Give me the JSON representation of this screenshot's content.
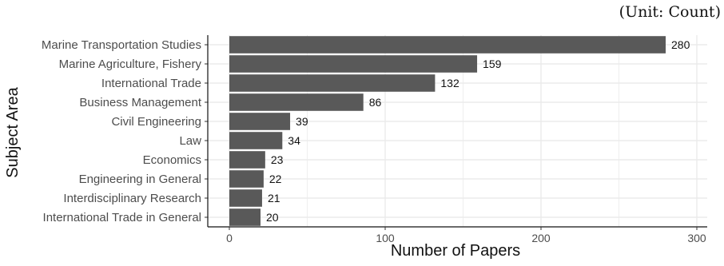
{
  "unit_note": "(Unit: Count)",
  "chart_data": {
    "type": "bar",
    "orientation": "horizontal",
    "categories": [
      "Marine Transportation Studies",
      "Marine Agriculture, Fishery",
      "International Trade",
      "Business Management",
      "Civil Engineering",
      "Law",
      "Economics",
      "Engineering in General",
      "Interdisciplinary Research",
      "International Trade in General"
    ],
    "values": [
      280,
      159,
      132,
      86,
      39,
      34,
      23,
      22,
      21,
      20
    ],
    "xlabel": "Number of Papers",
    "ylabel": "Subject Area",
    "xlim": [
      0,
      300
    ],
    "xticks": [
      0,
      100,
      200,
      300
    ],
    "grid": true,
    "bar_color": "#595959",
    "grid_color": "#ebebeb"
  }
}
